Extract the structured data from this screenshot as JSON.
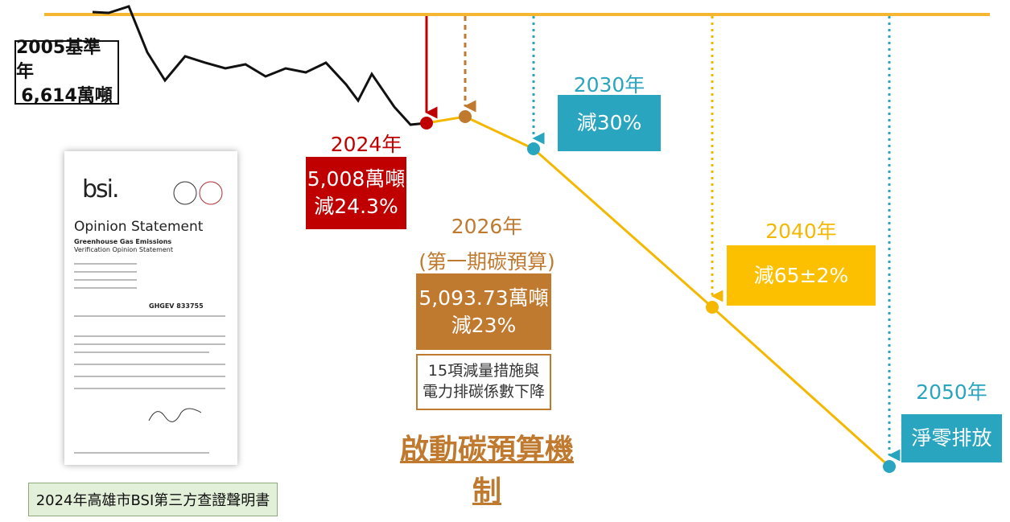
{
  "baseline": {
    "year": "2005基準年",
    "amount": "6,614萬噸"
  },
  "milestones": [
    {
      "year": "2024年",
      "amount": "5,008萬噸",
      "reduction": "減24.3%"
    },
    {
      "year": "2026年",
      "subtitle": "(第一期碳預算)",
      "amount": "5,093.73萬噸",
      "reduction": "減23%",
      "note": [
        "15項減量措施與",
        "電力排碳係數下降"
      ]
    },
    {
      "year": "2030年",
      "reduction": "減30%"
    },
    {
      "year": "2040年",
      "reduction": "減65±2%"
    },
    {
      "year": "2050年",
      "reduction": "淨零排放"
    }
  ],
  "mechanism": "啟動碳預算機制",
  "certificate": {
    "logo": "bsi.",
    "title": "Opinion Statement",
    "heading": "Greenhouse Gas Emissions",
    "subheading": "Verification Opinion Statement",
    "statement_no": "GHGEV 833755"
  },
  "caption": "2024年高雄市BSI第三方查證聲明書"
}
